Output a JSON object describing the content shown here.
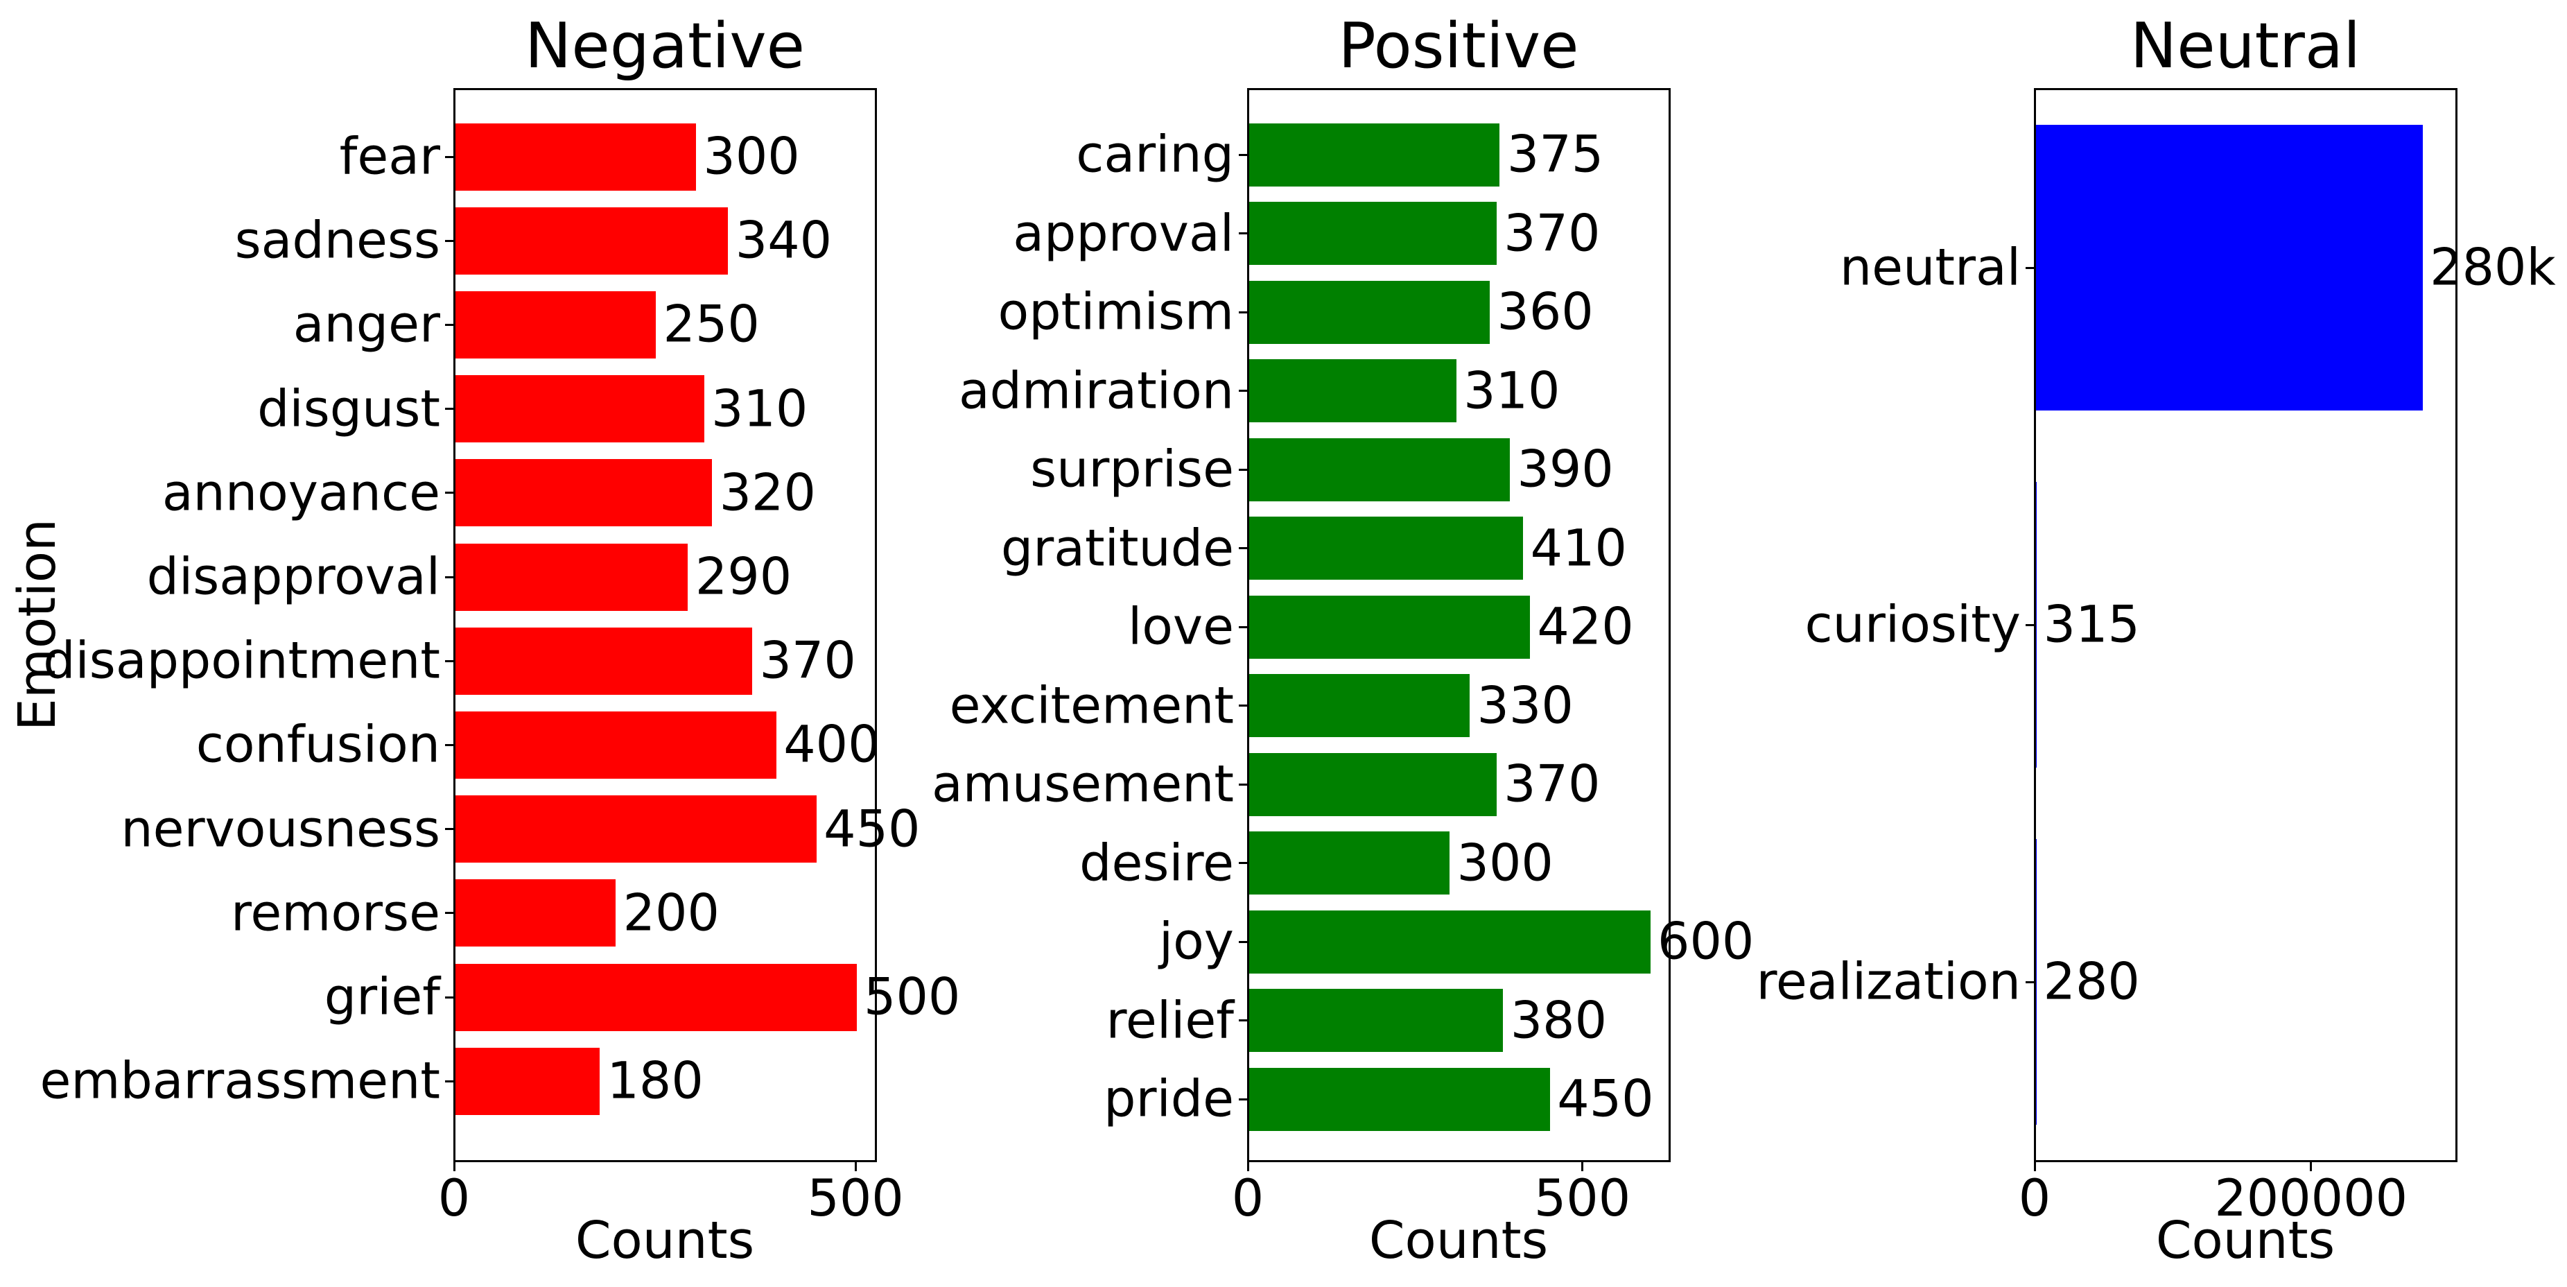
{
  "figure": {
    "background": "#ffffff",
    "text_color": "#000000",
    "spine_color": "#000000"
  },
  "chart_data": [
    {
      "type": "bar",
      "orientation": "horizontal",
      "title": "Negative",
      "xlabel": "Counts",
      "ylabel": "Emotion",
      "bar_color": "#ff0000",
      "grid": false,
      "legend": false,
      "categories": [
        "fear",
        "sadness",
        "anger",
        "disgust",
        "annoyance",
        "disapproval",
        "disappointment",
        "confusion",
        "nervousness",
        "remorse",
        "grief",
        "embarrassment"
      ],
      "values": [
        300,
        340,
        250,
        310,
        320,
        290,
        370,
        400,
        450,
        200,
        500,
        180
      ],
      "value_labels": [
        "300",
        "340",
        "250",
        "310",
        "320",
        "290",
        "370",
        "400",
        "450",
        "200",
        "500",
        "180"
      ],
      "xlim": [
        0,
        525
      ],
      "xticks": [
        {
          "value": 0,
          "label": "0"
        },
        {
          "value": 500,
          "label": "500"
        }
      ]
    },
    {
      "type": "bar",
      "orientation": "horizontal",
      "title": "Positive",
      "xlabel": "Counts",
      "ylabel": "",
      "bar_color": "#008000",
      "grid": false,
      "legend": false,
      "categories": [
        "caring",
        "approval",
        "optimism",
        "admiration",
        "surprise",
        "gratitude",
        "love",
        "excitement",
        "amusement",
        "desire",
        "joy",
        "relief",
        "pride"
      ],
      "values": [
        375,
        370,
        360,
        310,
        390,
        410,
        420,
        330,
        370,
        300,
        600,
        380,
        450
      ],
      "value_labels": [
        "375",
        "370",
        "360",
        "310",
        "390",
        "410",
        "420",
        "330",
        "370",
        "300",
        "600",
        "380",
        "450"
      ],
      "xlim": [
        0,
        630
      ],
      "xticks": [
        {
          "value": 0,
          "label": "0"
        },
        {
          "value": 500,
          "label": "500"
        }
      ]
    },
    {
      "type": "bar",
      "orientation": "horizontal",
      "title": "Neutral",
      "xlabel": "Counts",
      "ylabel": "",
      "bar_color": "#0000ff",
      "grid": false,
      "legend": false,
      "categories": [
        "neutral",
        "curiosity",
        "realization"
      ],
      "values": [
        280000,
        315,
        280
      ],
      "value_labels": [
        "280k",
        "315",
        "280"
      ],
      "xlim": [
        0,
        305000
      ],
      "xticks": [
        {
          "value": 0,
          "label": "0"
        },
        {
          "value": 200000,
          "label": "200000"
        }
      ]
    }
  ]
}
